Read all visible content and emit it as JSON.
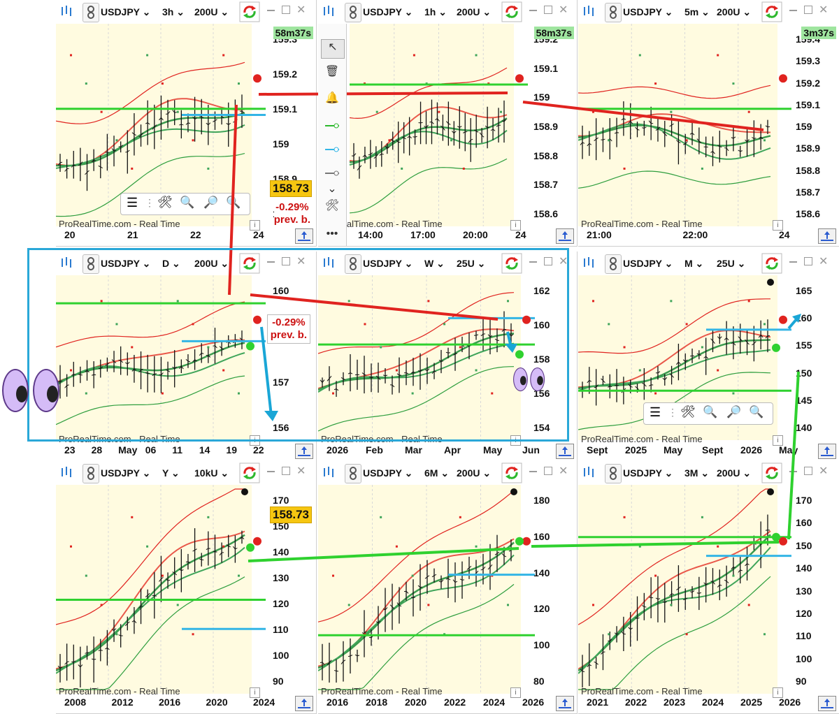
{
  "colors": {
    "toolbar_bg": "#ffffff",
    "chart_band": "#fffbe0",
    "green_line": "#2db82d",
    "red_line": "#e0231f",
    "blue_line": "#33b5e5",
    "price_box": "#f6c611",
    "timer_bg": "#9fe59f",
    "frame_blue": "#2aa8d8"
  },
  "watermark": "ProRealTime.com - Real Time",
  "panels": [
    {
      "symbol": "USDJPY",
      "tf": "3h",
      "units": "200U",
      "timer": "58m37s",
      "price": "158.73",
      "change": "-0.29%",
      "change_sub": "prev. b.",
      "y_labels": [
        "159.3",
        "159.2",
        "159.1",
        "159",
        "158.9",
        "158.8"
      ],
      "x_labels": [
        "20",
        "21",
        "22",
        "24"
      ]
    },
    {
      "symbol": "USDJPY",
      "tf": "1h",
      "units": "200U",
      "timer": "58m37s",
      "y_labels": [
        "159.2",
        "159.1",
        "159",
        "158.9",
        "158.8",
        "158.7",
        "158.6"
      ],
      "x_labels": [
        "14:00",
        "17:00",
        "20:00",
        "24"
      ]
    },
    {
      "symbol": "USDJPY",
      "tf": "5m",
      "units": "200U",
      "timer": "3m37s",
      "y_labels": [
        "159.4",
        "159.3",
        "159.2",
        "159.1",
        "159",
        "158.9",
        "158.8",
        "158.7",
        "158.6"
      ],
      "x_labels": [
        "21:00",
        "22:00",
        "24"
      ]
    },
    {
      "symbol": "USDJPY",
      "tf": "D",
      "units": "200U",
      "change": "-0.29%",
      "change_sub": "prev. b.",
      "y_labels": [
        "160",
        "158",
        "157",
        "156"
      ],
      "x_labels": [
        "23",
        "28",
        "May",
        "06",
        "11",
        "14",
        "19",
        "22"
      ]
    },
    {
      "symbol": "USDJPY",
      "tf": "W",
      "units": "25U",
      "y_labels": [
        "162",
        "160",
        "158",
        "156",
        "154"
      ],
      "x_labels": [
        "2026",
        "Feb",
        "Mar",
        "Apr",
        "May",
        "Jun"
      ]
    },
    {
      "symbol": "USDJPY",
      "tf": "M",
      "units": "25U",
      "y_labels": [
        "165",
        "160",
        "155",
        "150",
        "145",
        "140"
      ],
      "x_labels": [
        "Sept",
        "2025",
        "May",
        "Sept",
        "2026",
        "May"
      ]
    },
    {
      "symbol": "USDJPY",
      "tf": "Y",
      "units": "10kU",
      "price": "158.73",
      "y_labels": [
        "170",
        "150",
        "140",
        "130",
        "120",
        "110",
        "100",
        "90"
      ],
      "x_labels": [
        "2008",
        "2012",
        "2016",
        "2020",
        "2024"
      ]
    },
    {
      "symbol": "USDJPY",
      "tf": "6M",
      "units": "200U",
      "y_labels": [
        "180",
        "160",
        "140",
        "120",
        "100",
        "80"
      ],
      "x_labels": [
        "2016",
        "2018",
        "2020",
        "2022",
        "2024",
        "2026"
      ]
    },
    {
      "symbol": "USDJPY",
      "tf": "3M",
      "units": "200U",
      "y_labels": [
        "170",
        "160",
        "150",
        "140",
        "130",
        "120",
        "110",
        "100",
        "90"
      ],
      "x_labels": [
        "2021",
        "2022",
        "2023",
        "2024",
        "2025",
        "2026"
      ]
    }
  ],
  "sidebar_tools": [
    "cursor-tool",
    "trash-tool",
    "alert-tool",
    "green-line-tool",
    "blue-line-tool",
    "gray-line-tool",
    "more-tool"
  ],
  "icons": {
    "logo": "candles-icon",
    "link": "link-icon",
    "refresh": "refresh-icon",
    "minimize": "minimize-icon",
    "maximize": "maximize-icon",
    "close": "close-icon",
    "info": "info-icon",
    "scroll": "scroll-arrows-icon"
  }
}
